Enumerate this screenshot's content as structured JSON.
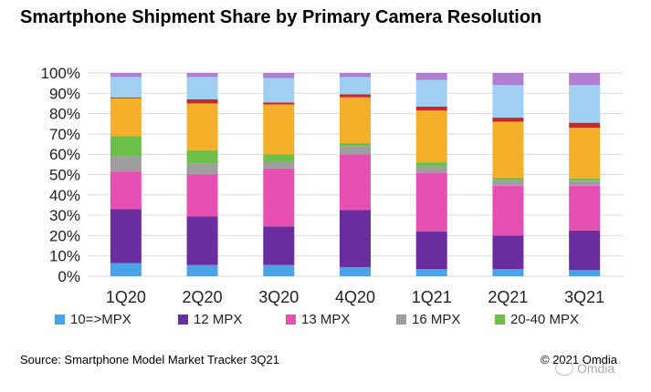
{
  "chart_data": {
    "type": "bar",
    "stacked": true,
    "title": "Smartphone Shipment Share by Primary Camera Resolution",
    "xlabel": "",
    "ylabel": "",
    "ylim": [
      0,
      100
    ],
    "yticks": [
      "0%",
      "10%",
      "20%",
      "30%",
      "40%",
      "50%",
      "60%",
      "70%",
      "80%",
      "90%",
      "100%"
    ],
    "grid": true,
    "legend_position": "bottom",
    "categories": [
      "1Q20",
      "2Q20",
      "3Q20",
      "4Q20",
      "1Q21",
      "2Q21",
      "3Q21"
    ],
    "series": [
      {
        "name": "10=>MPX",
        "color": "#4aa3e8",
        "values": [
          6.5,
          5.5,
          5.5,
          4.5,
          3.5,
          3.5,
          3
        ]
      },
      {
        "name": "12 MPX",
        "color": "#6a2da0",
        "values": [
          26.5,
          24,
          19,
          28,
          18.5,
          16.5,
          19.5
        ]
      },
      {
        "name": "13 MPX",
        "color": "#e84fb2",
        "values": [
          18.5,
          20.5,
          28.5,
          27.5,
          29,
          24.5,
          22
        ]
      },
      {
        "name": "16 MPX",
        "color": "#9e9e9e",
        "values": [
          7.5,
          5.5,
          3.5,
          4,
          3,
          3,
          2.5
        ]
      },
      {
        "name": "20-40 MPX",
        "color": "#6cc04a",
        "values": [
          10,
          6.5,
          3.5,
          1.5,
          2,
          1,
          1
        ]
      },
      {
        "name": "",
        "color": "#f4b02b",
        "values": [
          18.5,
          23,
          24.5,
          22.5,
          25.5,
          27.5,
          25
        ]
      },
      {
        "name": "",
        "color": "#c42a2a",
        "values": [
          0.5,
          2,
          1,
          1.5,
          2,
          2,
          2.5
        ]
      },
      {
        "name": "",
        "color": "#9fd0f2",
        "values": [
          10,
          11,
          12,
          8.5,
          13,
          16,
          18.5
        ]
      },
      {
        "name": "",
        "color": "#b07fd0",
        "values": [
          2,
          2,
          2.5,
          2,
          3.5,
          6,
          6
        ]
      }
    ]
  },
  "footer": {
    "source": "Source: Smartphone Model Market Tracker 3Q21",
    "copyright": "© 2021 Omdia",
    "watermark": "Omdia"
  }
}
